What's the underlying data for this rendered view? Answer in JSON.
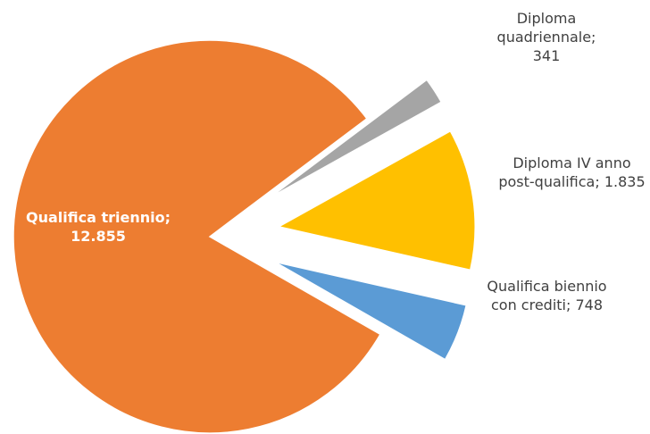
{
  "chart_data": {
    "type": "pie",
    "categories": [
      "Qualifica triennio",
      "Diploma quadriennale",
      "Diploma IV anno post-qualifica",
      "Qualifica biennio con crediti"
    ],
    "values": [
      12855,
      341,
      1835,
      748
    ],
    "value_labels": [
      "12.855",
      "341",
      "1.835",
      "748"
    ],
    "label_separator": "; ",
    "colors": [
      "#ED7D31",
      "#A5A5A5",
      "#FFC000",
      "#5B9BD5"
    ]
  }
}
